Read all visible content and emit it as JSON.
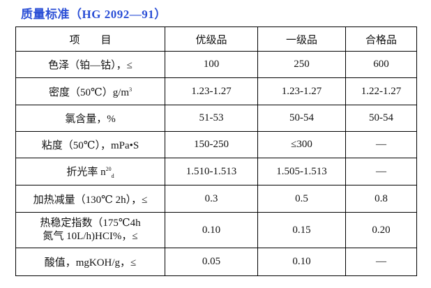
{
  "title": "质量标准（HG 2092—91）",
  "table": {
    "header": [
      "项　　目",
      "优级品",
      "一级品",
      "合格品"
    ],
    "rows": [
      [
        {
          "text": "色泽（铂—钴），≤"
        },
        "100",
        "250",
        "600"
      ],
      [
        {
          "text": "密度（50℃）g/m",
          "sup": "3"
        },
        "1.23-1.27",
        "1.23-1.27",
        "1.22-1.27"
      ],
      [
        {
          "text": "氯含量，%"
        },
        "51-53",
        "50-54",
        "50-54"
      ],
      [
        {
          "text": "粘度（50℃），mPa•S"
        },
        "150-250",
        "≤300",
        "—"
      ],
      [
        {
          "text": "折光率 n",
          "sup": "20",
          "sub": "d"
        },
        "1.510-1.513",
        "1.505-1.513",
        "—"
      ],
      [
        {
          "text": "加热减量（130℃ 2h），≤"
        },
        "0.3",
        "0.5",
        "0.8"
      ],
      [
        {
          "lines": [
            "热稳定指数（175℃4h",
            "氮气 10L/h)HCI%，≤"
          ]
        },
        "0.10",
        "0.15",
        "0.20"
      ],
      [
        {
          "text": "酸值，mgKOH/g，≤"
        },
        "0.05",
        "0.10",
        "—"
      ]
    ]
  }
}
